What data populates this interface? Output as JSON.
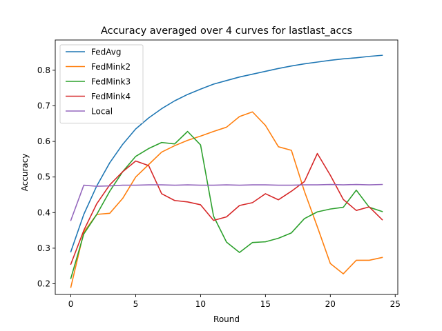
{
  "chart_data": {
    "type": "line",
    "title": "Accuracy averaged over 4 curves for lastlast_accs",
    "xlabel": "Round",
    "ylabel": "Accuracy",
    "xlim": [
      -1.2,
      25.2
    ],
    "ylim": [
      0.17,
      0.885
    ],
    "xticks": [
      0,
      5,
      10,
      15,
      20,
      25
    ],
    "yticks": [
      0.2,
      0.3,
      0.4,
      0.5,
      0.6,
      0.7,
      0.8
    ],
    "legend_position": "upper-left",
    "grid": false,
    "x": [
      0,
      1,
      2,
      3,
      4,
      5,
      6,
      7,
      8,
      9,
      10,
      11,
      12,
      13,
      14,
      15,
      16,
      17,
      18,
      19,
      20,
      21,
      22,
      23,
      24
    ],
    "series": [
      {
        "name": "FedAvg",
        "color": "#1f77b4",
        "values": [
          0.29,
          0.395,
          0.475,
          0.54,
          0.592,
          0.635,
          0.666,
          0.692,
          0.714,
          0.732,
          0.747,
          0.761,
          0.771,
          0.781,
          0.789,
          0.797,
          0.805,
          0.812,
          0.818,
          0.823,
          0.828,
          0.832,
          0.835,
          0.839,
          0.842
        ]
      },
      {
        "name": "FedMink2",
        "color": "#ff7f0e",
        "values": [
          0.19,
          0.345,
          0.395,
          0.398,
          0.44,
          0.5,
          0.535,
          0.57,
          0.588,
          0.603,
          0.615,
          0.628,
          0.64,
          0.67,
          0.683,
          0.645,
          0.585,
          0.575,
          0.46,
          0.36,
          0.257,
          0.228,
          0.266,
          0.266,
          0.274
        ]
      },
      {
        "name": "FedMink3",
        "color": "#2ca02c",
        "values": [
          0.215,
          0.34,
          0.395,
          0.46,
          0.515,
          0.558,
          0.58,
          0.597,
          0.593,
          0.628,
          0.59,
          0.39,
          0.317,
          0.288,
          0.316,
          0.318,
          0.328,
          0.343,
          0.383,
          0.402,
          0.41,
          0.415,
          0.463,
          0.415,
          0.403
        ]
      },
      {
        "name": "FedMink4",
        "color": "#d62728",
        "values": [
          0.255,
          0.35,
          0.425,
          0.478,
          0.515,
          0.545,
          0.532,
          0.453,
          0.434,
          0.43,
          0.422,
          0.378,
          0.388,
          0.42,
          0.428,
          0.453,
          0.436,
          0.46,
          0.487,
          0.566,
          0.505,
          0.437,
          0.406,
          0.416,
          0.38
        ]
      },
      {
        "name": "Local",
        "color": "#9467bd",
        "values": [
          0.378,
          0.477,
          0.474,
          0.475,
          0.477,
          0.477,
          0.478,
          0.478,
          0.477,
          0.478,
          0.477,
          0.477,
          0.478,
          0.477,
          0.478,
          0.478,
          0.477,
          0.477,
          0.478,
          0.478,
          0.479,
          0.478,
          0.479,
          0.478,
          0.479
        ]
      }
    ]
  }
}
